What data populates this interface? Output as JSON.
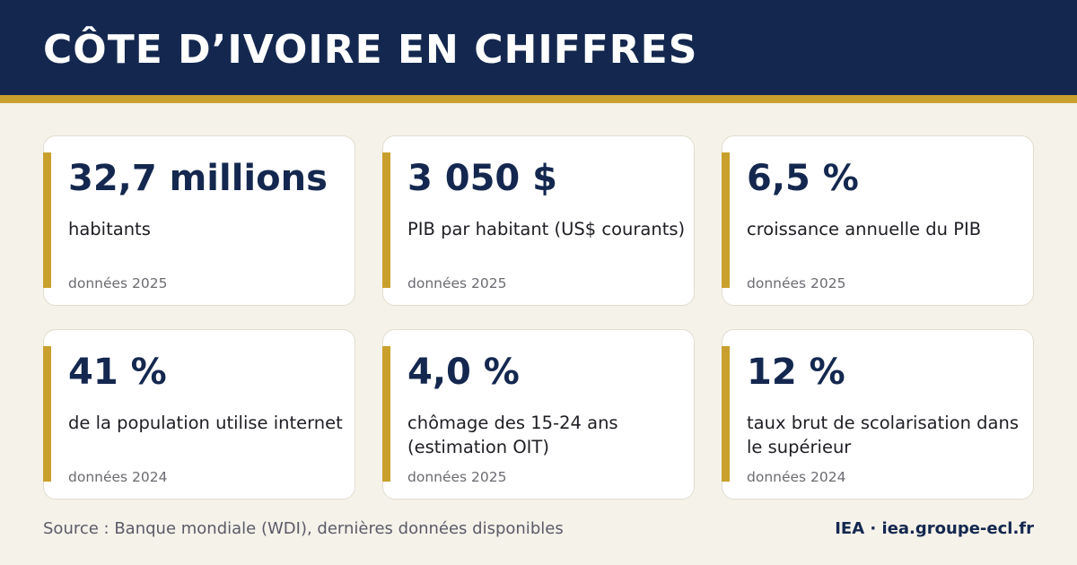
{
  "header": {
    "title": "CÔTE D’IVOIRE EN CHIFFRES"
  },
  "colors": {
    "navy": "#14284f",
    "gold": "#c9a02d",
    "background": "#f5f2ea"
  },
  "stats": [
    {
      "value": "32,7 millions",
      "label": "habitants",
      "year": "données 2025"
    },
    {
      "value": "3 050 $",
      "label": "PIB par habitant (US$ courants)",
      "year": "données 2025"
    },
    {
      "value": "6,5 %",
      "label": "croissance annuelle du PIB",
      "year": "données 2025"
    },
    {
      "value": "41 %",
      "label": "de la population utilise internet",
      "year": "données 2024"
    },
    {
      "value": "4,0 %",
      "label": "chômage des 15-24 ans (estimation OIT)",
      "year": "données 2025"
    },
    {
      "value": "12 %",
      "label": "taux brut de scolarisation dans le supérieur",
      "year": "données 2024"
    }
  ],
  "footer": {
    "source": "Source : Banque mondiale (WDI), dernières données disponibles",
    "brand": "IEA · iea.groupe-ecl.fr"
  }
}
